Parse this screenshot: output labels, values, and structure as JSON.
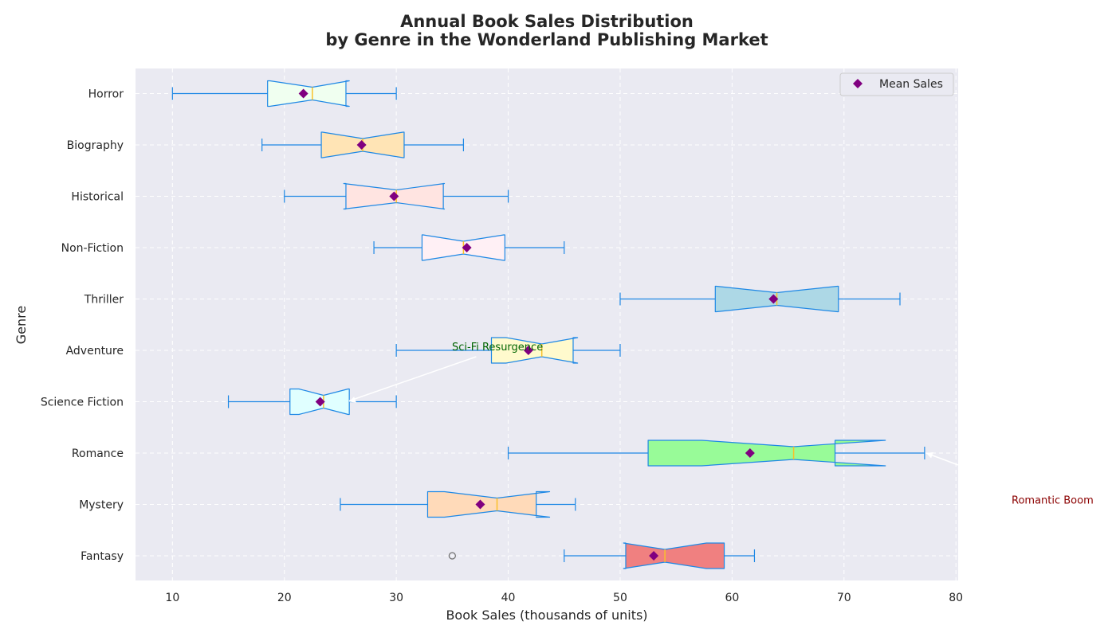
{
  "chart_data": {
    "type": "boxplot",
    "orientation": "horizontal",
    "title_lines": [
      "Annual Book Sales Distribution",
      "by Genre in the Wonderland Publishing Market"
    ],
    "xlabel": "Book Sales (thousands of units)",
    "ylabel": "Genre",
    "xlim": [
      6.7,
      80.2
    ],
    "xticks": [
      10,
      20,
      30,
      40,
      50,
      60,
      70,
      80
    ],
    "grid": true,
    "notched": true,
    "legend": {
      "placement": "top-right",
      "entries": [
        {
          "label": "Mean Sales",
          "marker": "diamond",
          "color": "#800080"
        }
      ]
    },
    "box_edge_color": "#1e88e5",
    "median_color": "#f9c02a",
    "mean_marker_color": "#800080",
    "boxes": [
      {
        "genre": "Fantasy",
        "whisker_low": 45,
        "q1": 50.5,
        "median": 54,
        "q3": 59.3,
        "whisker_high": 62,
        "notch_low": 50.3,
        "notch_high": 57.7,
        "mean": 53,
        "fliers": [
          35
        ],
        "fill": "#f08080"
      },
      {
        "genre": "Mystery",
        "whisker_low": 25,
        "q1": 32.8,
        "median": 39,
        "q3": 42.5,
        "whisker_high": 46,
        "notch_low": 34.3,
        "notch_high": 43.7,
        "mean": 37.5,
        "fliers": [],
        "fill": "#ffdab9"
      },
      {
        "genre": "Romance",
        "whisker_low": 40,
        "q1": 52.5,
        "median": 65.5,
        "q3": 69.2,
        "whisker_high": 77.2,
        "notch_low": 57.3,
        "notch_high": 73.7,
        "mean": 61.6,
        "fliers": [],
        "fill": "#98fb98"
      },
      {
        "genre": "Science Fiction",
        "whisker_low": 15,
        "q1": 20.5,
        "median": 23.5,
        "q3": 25.8,
        "whisker_high": 30,
        "notch_low": 21.3,
        "notch_high": 25.7,
        "mean": 23.2,
        "fliers": [],
        "fill": "#e0ffff"
      },
      {
        "genre": "Adventure",
        "whisker_low": 30,
        "q1": 38.5,
        "median": 43,
        "q3": 45.8,
        "whisker_high": 50,
        "notch_low": 39.8,
        "notch_high": 46.2,
        "mean": 41.8,
        "fliers": [],
        "fill": "#fffacd"
      },
      {
        "genre": "Thriller",
        "whisker_low": 50,
        "q1": 58.5,
        "median": 64,
        "q3": 69.5,
        "whisker_high": 75,
        "notch_low": 58.6,
        "notch_high": 69.4,
        "mean": 63.7,
        "fliers": [],
        "fill": "#add8e6"
      },
      {
        "genre": "Non-Fiction",
        "whisker_low": 28,
        "q1": 32.3,
        "median": 36,
        "q3": 39.7,
        "whisker_high": 45,
        "notch_low": 32.4,
        "notch_high": 39.6,
        "mean": 36.3,
        "fliers": [],
        "fill": "#fff0f5"
      },
      {
        "genre": "Historical",
        "whisker_low": 20,
        "q1": 25.5,
        "median": 30,
        "q3": 34.2,
        "whisker_high": 40,
        "notch_low": 25.3,
        "notch_high": 34.3,
        "mean": 29.8,
        "fliers": [],
        "fill": "#ffe4e1"
      },
      {
        "genre": "Biography",
        "whisker_low": 18,
        "q1": 23.3,
        "median": 27,
        "q3": 30.7,
        "whisker_high": 36,
        "notch_low": 23.4,
        "notch_high": 30.6,
        "mean": 26.9,
        "fliers": [],
        "fill": "#ffe4b5"
      },
      {
        "genre": "Horror",
        "whisker_low": 10,
        "q1": 18.5,
        "median": 22.5,
        "q3": 25.5,
        "whisker_high": 30,
        "notch_low": 18.7,
        "notch_high": 25.8,
        "mean": 21.7,
        "fliers": [],
        "fill": "#f0fff0"
      }
    ],
    "annotations": [
      {
        "text": "Sci-Fi Resurgence",
        "color": "#006400",
        "arrow_color": "#ffffff",
        "target": {
          "x": 25.5,
          "genre": "Science Fiction"
        },
        "text_at": {
          "x": 35,
          "genre": "Adventure"
        }
      },
      {
        "text": "Romantic Boom",
        "color": "#8b0000",
        "arrow_color": "#ffffff",
        "target": {
          "x": 77.2,
          "genre": "Romance"
        },
        "text_at": {
          "x": 86.5,
          "genre": "Mystery"
        }
      }
    ]
  }
}
